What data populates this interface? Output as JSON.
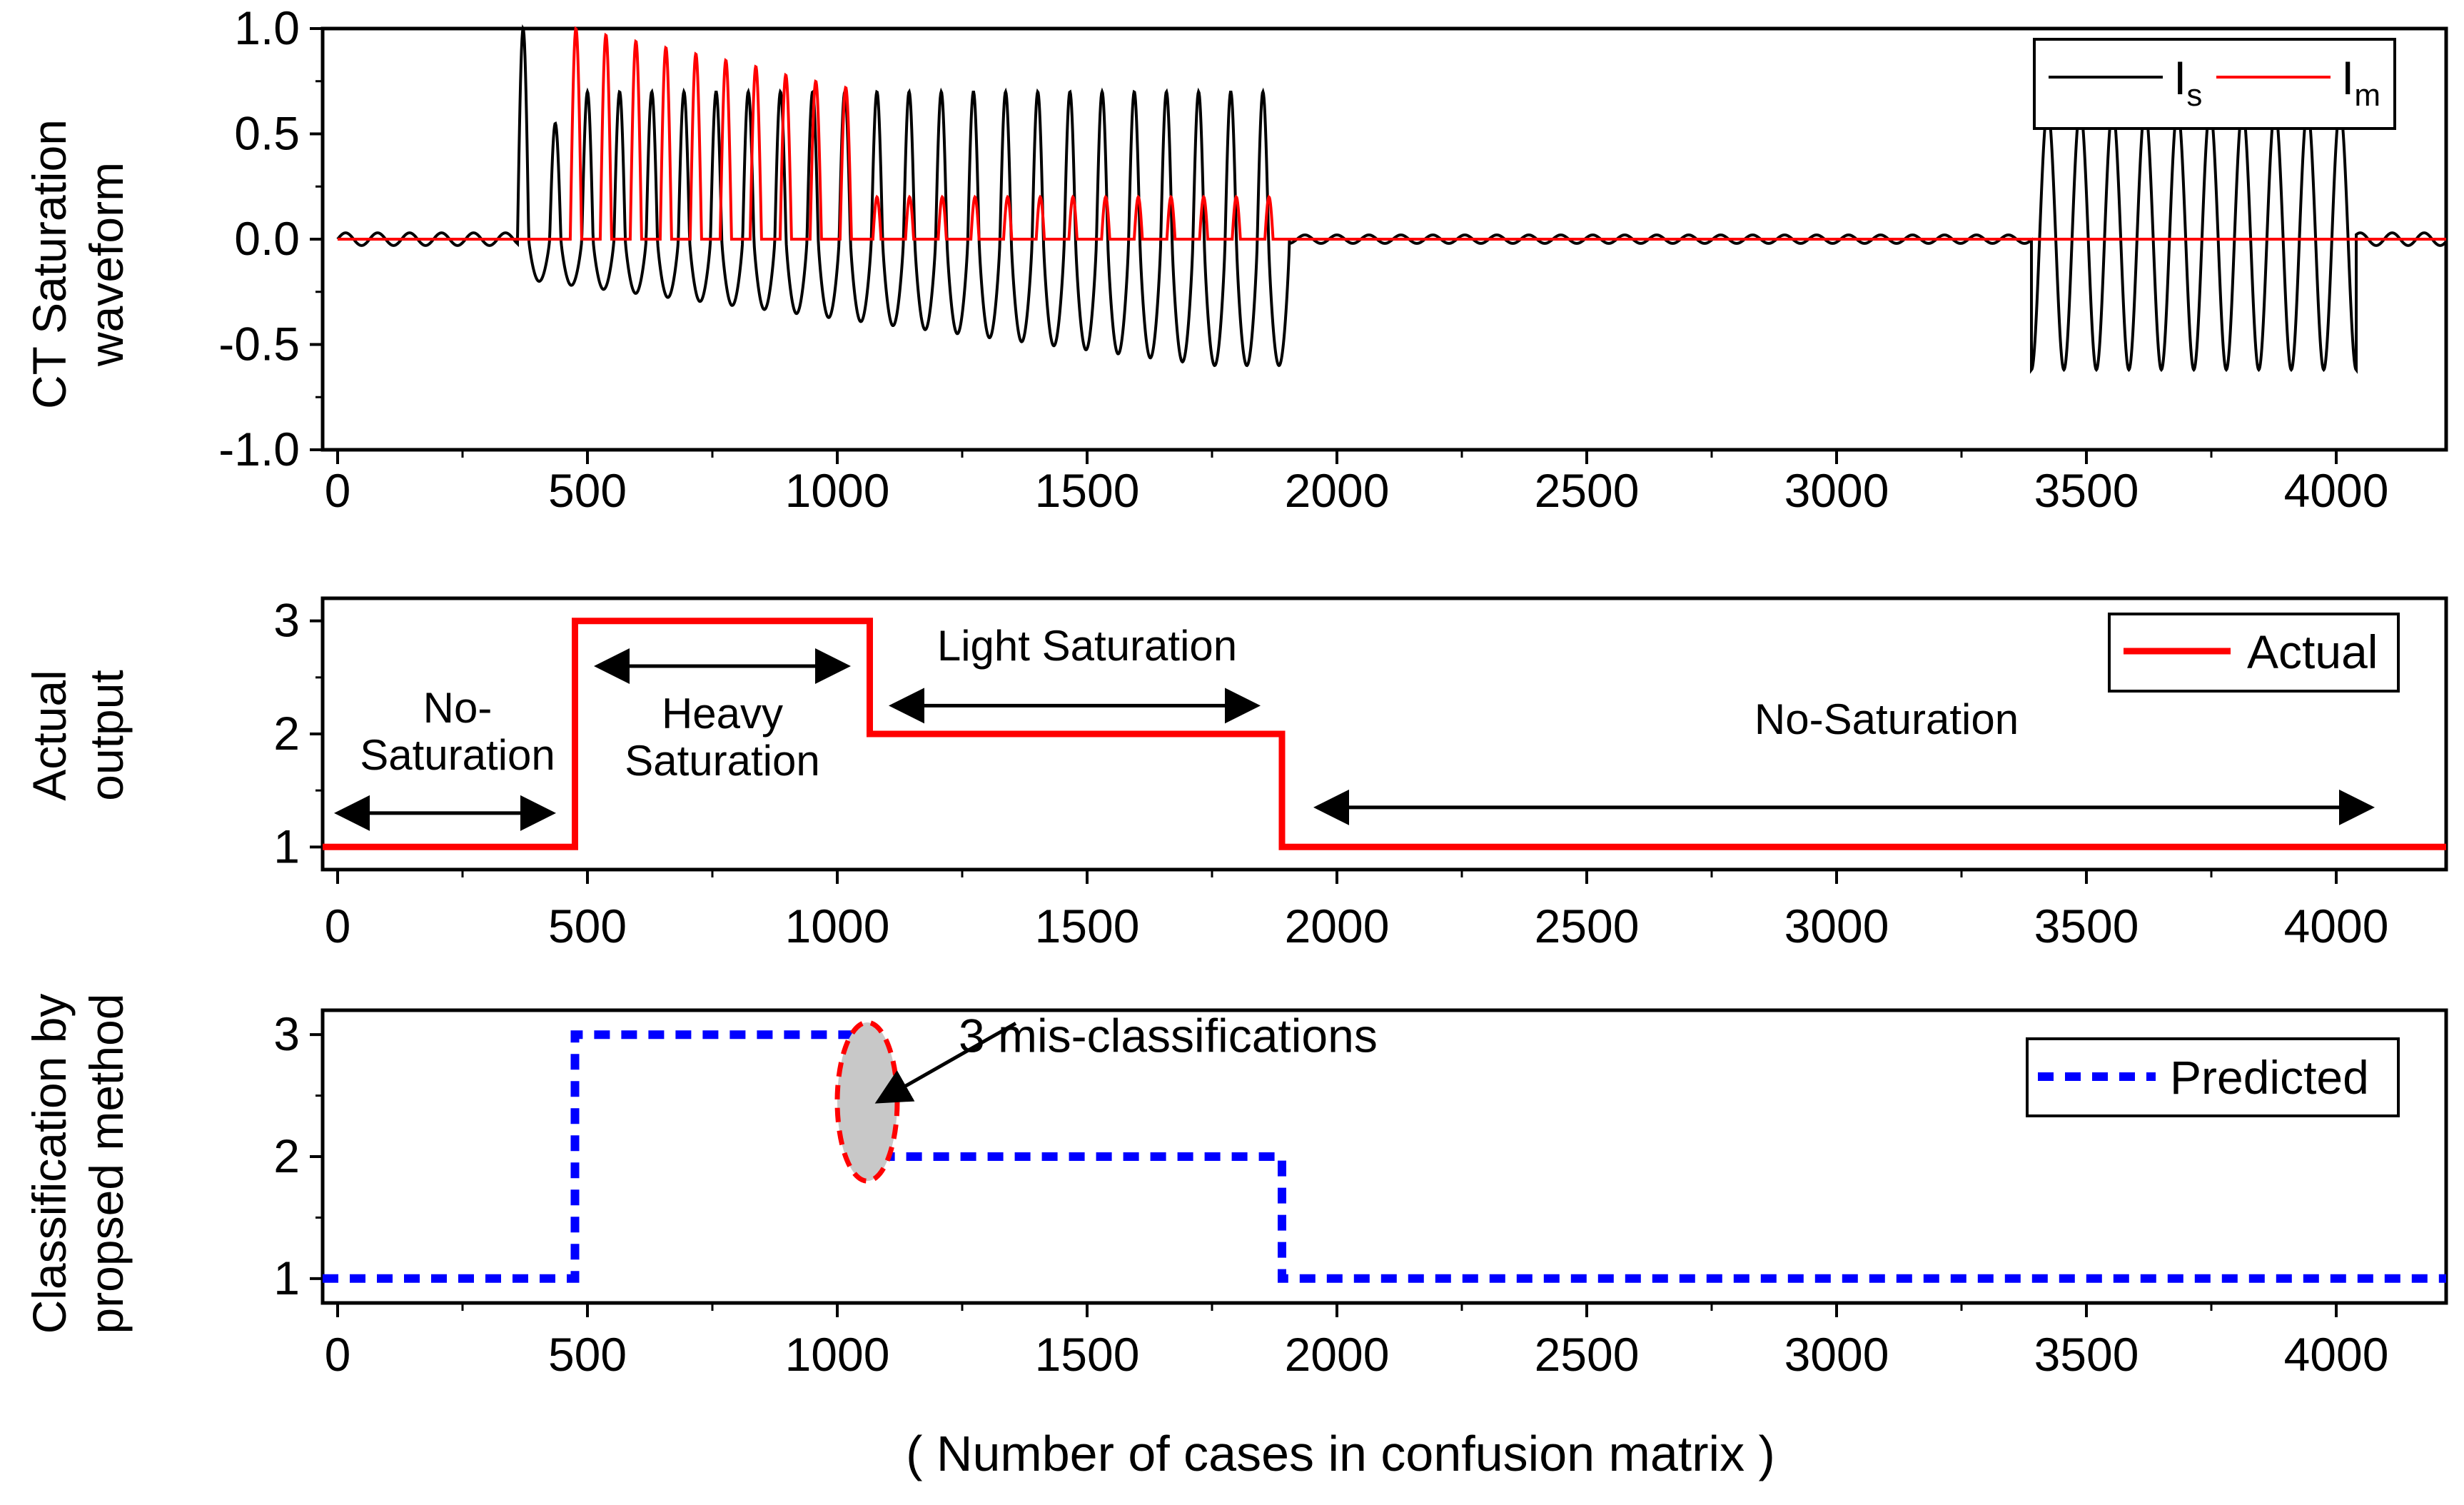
{
  "figure": {
    "xlabel": "( Number of cases in confusion matrix )"
  },
  "chart_data": [
    {
      "type": "line",
      "id": "panel1",
      "title": "",
      "ylabel_lines": [
        "CT Saturation",
        "waveform"
      ],
      "xlim": [
        -30,
        4220
      ],
      "ylim": [
        -1.0,
        1.0
      ],
      "xticks": [
        0,
        500,
        1000,
        1500,
        2000,
        2500,
        3000,
        3500,
        4000
      ],
      "yticks": [
        -1.0,
        -0.5,
        0.0,
        0.5,
        1.0
      ],
      "ytick_labels": [
        "-1.0",
        "-0.5",
        "0.0",
        "0.5",
        "1.0"
      ],
      "legend": {
        "position": "top-right",
        "entries": [
          {
            "name": "I",
            "subscript": "s",
            "color": "#000000"
          },
          {
            "name": "I",
            "subscript": "m",
            "color": "#ff0000"
          }
        ]
      },
      "series": [
        {
          "name": "Is",
          "color": "#000000",
          "segments": [
            {
              "x_start": 0,
              "x_end": 360,
              "form": "small oscillation",
              "amplitude": 0.03
            },
            {
              "x_start": 360,
              "x_end": 1905,
              "form": "saturated oscillation",
              "peak_first": 1.0,
              "peak_after": 0.7,
              "trough_first": -0.2,
              "trough_late": -0.6,
              "cycles": 24
            },
            {
              "x_start": 1905,
              "x_end": 3390,
              "form": "small oscillation",
              "amplitude": 0.02
            },
            {
              "x_start": 3390,
              "x_end": 4040,
              "form": "sinusoid",
              "amplitude": 0.62,
              "cycles": 10
            },
            {
              "x_start": 4040,
              "x_end": 4220,
              "form": "small oscillation",
              "amplitude": 0.03
            }
          ]
        },
        {
          "name": "Im",
          "color": "#ff0000",
          "segments": [
            {
              "x_start": 0,
              "x_end": 450,
              "form": "flat",
              "value": 0.0
            },
            {
              "x_start": 450,
              "x_end": 1050,
              "form": "pulses",
              "pulse_peaks": [
                1.0,
                0.97,
                0.94,
                0.91,
                0.88,
                0.85,
                0.82,
                0.78,
                0.75,
                0.72
              ]
            },
            {
              "x_start": 1050,
              "x_end": 1900,
              "form": "pulses",
              "pulse_peak": 0.2
            },
            {
              "x_start": 1900,
              "x_end": 4220,
              "form": "flat",
              "value": 0.0
            }
          ]
        }
      ]
    },
    {
      "type": "line",
      "id": "panel2",
      "ylabel_lines": [
        "Actual",
        "output"
      ],
      "xlim": [
        -30,
        4220
      ],
      "ylim": [
        0.8,
        3.2
      ],
      "xticks": [
        0,
        500,
        1000,
        1500,
        2000,
        2500,
        3000,
        3500,
        4000
      ],
      "yticks": [
        1,
        2,
        3
      ],
      "legend": {
        "position": "top-right",
        "entries": [
          {
            "name": "Actual",
            "color": "#ff0000"
          }
        ]
      },
      "series": [
        {
          "name": "Actual",
          "color": "#ff0000",
          "x": [
            -30,
            475,
            475,
            1065,
            1065,
            1890,
            1890,
            4220
          ],
          "y": [
            1,
            1,
            3,
            3,
            2,
            2,
            1,
            1
          ]
        }
      ],
      "annotations": [
        {
          "id": "a1",
          "lines": [
            "No-",
            "Saturation"
          ],
          "x": 240,
          "y": 2.1,
          "arrow": [
            0,
            430
          ],
          "arrow_y": 1.3
        },
        {
          "id": "a2",
          "lines": [
            "Heavy",
            "Saturation"
          ],
          "x": 770,
          "y": 2.05,
          "arrow": [
            520,
            1020
          ],
          "arrow_y": 2.6
        },
        {
          "id": "a3",
          "lines": [
            "Light Saturation"
          ],
          "x": 1500,
          "y": 2.65,
          "arrow": [
            1110,
            1840
          ],
          "arrow_y": 2.25
        },
        {
          "id": "a4",
          "lines": [
            "No-Saturation"
          ],
          "x": 3100,
          "y": 2.0,
          "arrow": [
            1960,
            4070
          ],
          "arrow_y": 1.35
        }
      ]
    },
    {
      "type": "line",
      "id": "panel3",
      "ylabel_lines": [
        "Classification by",
        "propsed method"
      ],
      "xlim": [
        -30,
        4220
      ],
      "ylim": [
        0.8,
        3.2
      ],
      "xticks": [
        0,
        500,
        1000,
        1500,
        2000,
        2500,
        3000,
        3500,
        4000
      ],
      "yticks": [
        1,
        2,
        3
      ],
      "legend": {
        "position": "top-right",
        "entries": [
          {
            "name": "Predicted",
            "color": "#0000ff"
          }
        ]
      },
      "series": [
        {
          "name": "Predicted",
          "color": "#0000ff",
          "x": [
            -30,
            475,
            475,
            1060,
            1060,
            1075,
            1075,
            1890,
            1890,
            4220
          ],
          "y": [
            1,
            1,
            3,
            3,
            2,
            2,
            2,
            2,
            1,
            1
          ]
        }
      ],
      "annotations": [
        {
          "id": "m1",
          "text": "3 mis-classifications",
          "x": 1300,
          "y": 2.8,
          "target_x": 1060,
          "target_y": 2.45,
          "ellipse_center": [
            1060,
            2.45
          ],
          "ellipse_radius": [
            60,
            0.65
          ]
        }
      ]
    }
  ]
}
